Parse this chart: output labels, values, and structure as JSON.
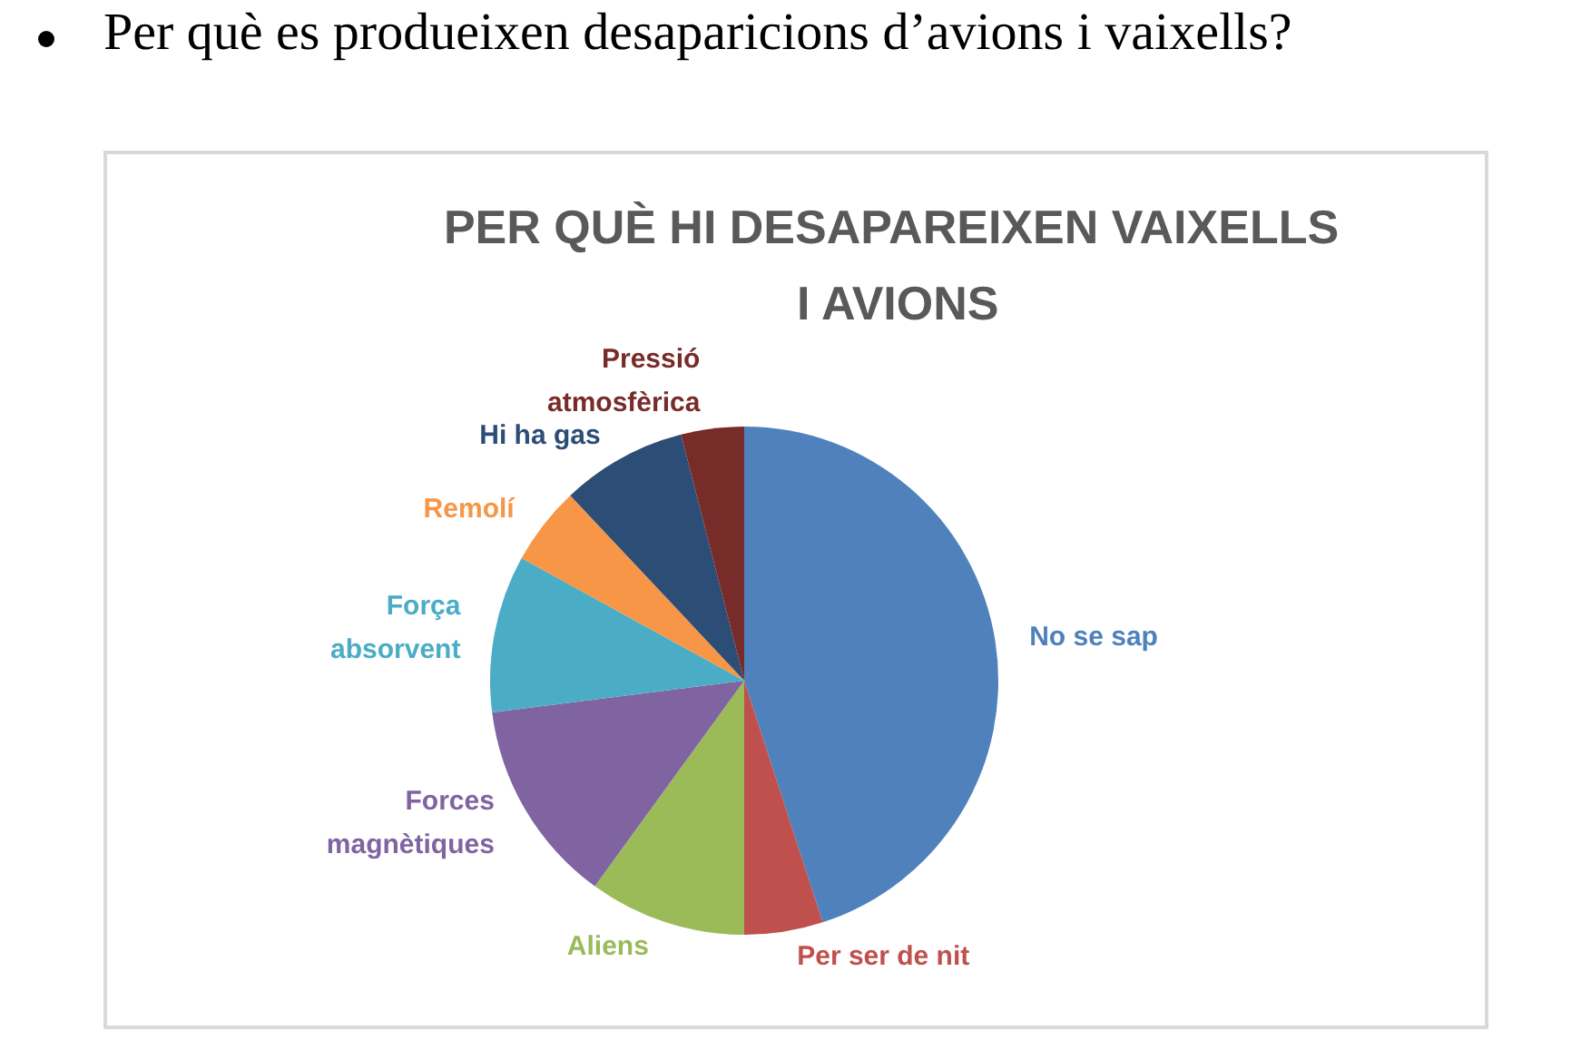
{
  "chart_data": {
    "type": "pie",
    "title": "PER QUÈ HI DESAPAREIXEN VAIXELLS I AVIONS",
    "categories": [
      "No se sap",
      "Per ser de nit",
      "Aliens",
      "Forces magnètiques",
      "Força absorvent",
      "Remolí",
      "Hi ha gas",
      "Pressió atmosfèrica"
    ],
    "values": [
      45,
      5,
      10,
      13,
      10,
      5,
      8,
      4
    ],
    "colors": [
      "#4f81bd",
      "#c0504d",
      "#9bbb59",
      "#8064a2",
      "#4bacc6",
      "#f79646",
      "#2c4d75",
      "#772c2a"
    ],
    "annotations": [
      "Per què es produeixen desaparicions d’avions i vaixells?"
    ]
  }
}
